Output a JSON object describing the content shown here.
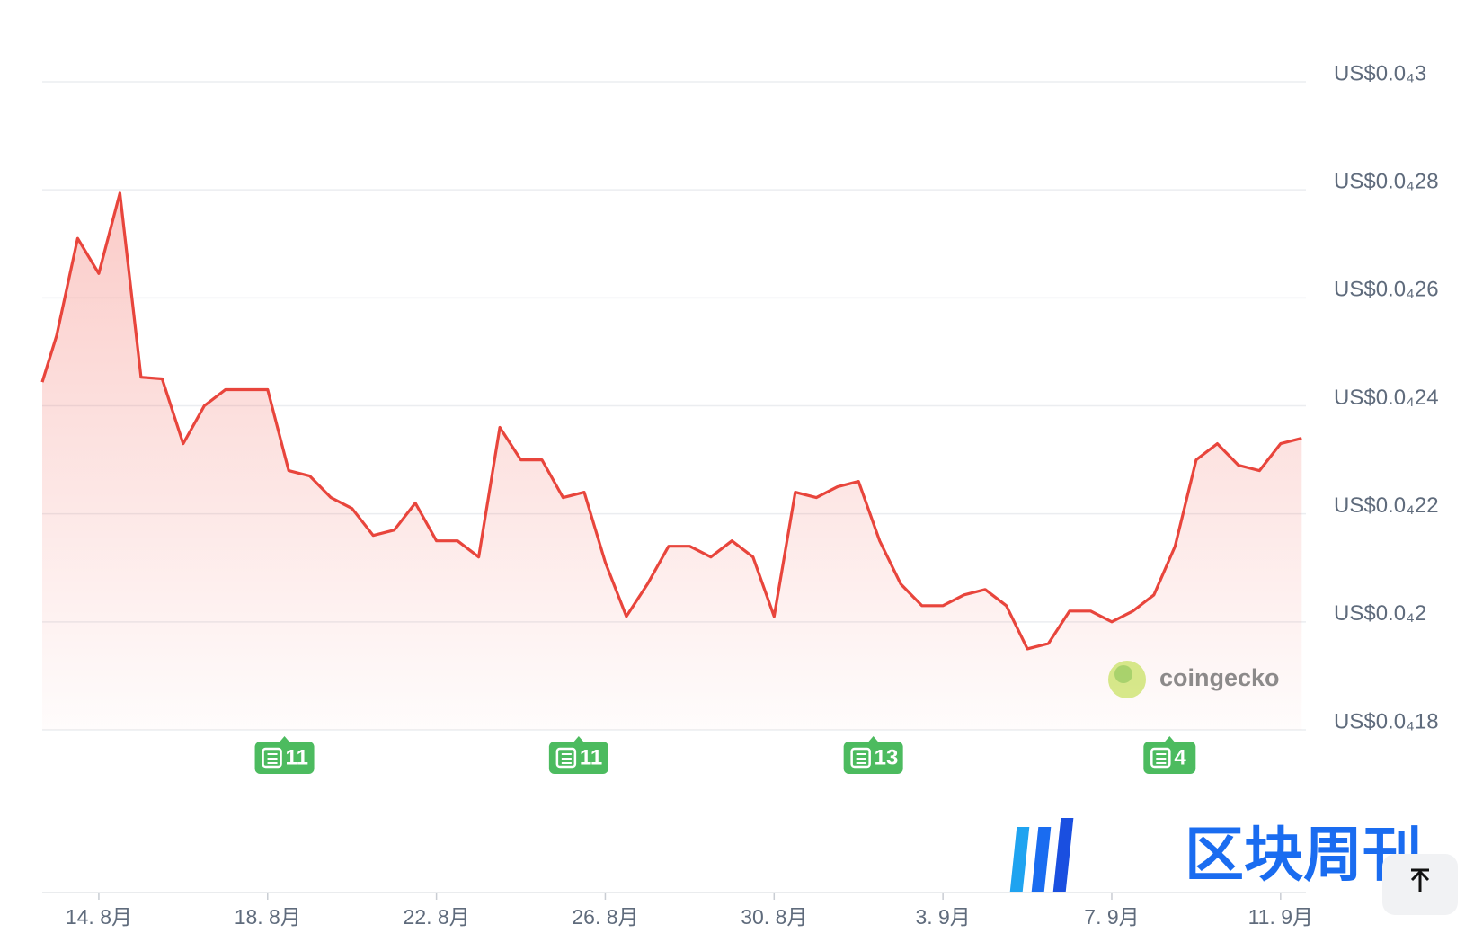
{
  "chart_data": {
    "type": "line",
    "series": [
      {
        "color": "#e8453c",
        "x": [
          -1.34,
          -1,
          -0.5,
          0,
          0.5,
          1,
          1.5,
          2,
          2.5,
          3,
          3.5,
          4,
          4.5,
          5,
          5.5,
          6,
          6.5,
          7,
          7.5,
          8,
          8.5,
          9,
          9.5,
          10,
          10.5,
          11,
          11.5,
          12,
          12.5,
          13,
          13.5,
          14,
          14.5,
          15,
          15.5,
          16,
          16.5,
          17,
          17.5,
          18,
          18.5,
          19,
          19.5,
          20,
          20.5,
          21,
          21.5,
          22,
          22.5,
          23,
          23.5,
          24,
          24.5,
          25,
          25.5,
          26,
          26.5,
          27,
          27.5,
          28,
          28.5
        ],
        "values": [
          2.444e-05,
          2.53e-05,
          2.71e-05,
          2.645e-05,
          2.794e-05,
          2.453e-05,
          2.45e-05,
          2.33e-05,
          2.4e-05,
          2.43e-05,
          2.43e-05,
          2.43e-05,
          2.28e-05,
          2.27e-05,
          2.23e-05,
          2.21e-05,
          2.16e-05,
          2.17e-05,
          2.22e-05,
          2.15e-05,
          2.15e-05,
          2.12e-05,
          2.36e-05,
          2.3e-05,
          2.3e-05,
          2.23e-05,
          2.24e-05,
          2.11e-05,
          2.01e-05,
          2.07e-05,
          2.14e-05,
          2.14e-05,
          2.12e-05,
          2.15e-05,
          2.12e-05,
          2.01e-05,
          2.24e-05,
          2.23e-05,
          2.25e-05,
          2.26e-05,
          2.15e-05,
          2.07e-05,
          2.03e-05,
          2.03e-05,
          2.05e-05,
          2.06e-05,
          2.03e-05,
          1.95e-05,
          1.96e-05,
          2.02e-05,
          2.02e-05,
          2e-05,
          2.02e-05,
          2.05e-05,
          2.14e-05,
          2.3e-05,
          2.33e-05,
          2.29e-05,
          2.28e-05,
          2.33e-05,
          2.34e-05
        ]
      }
    ],
    "xlim": [
      -1.34,
      28.6
    ],
    "xticks": [
      {
        "value": 0,
        "label": "14. 8月"
      },
      {
        "value": 4,
        "label": "18. 8月"
      },
      {
        "value": 8,
        "label": "22. 8月"
      },
      {
        "value": 12,
        "label": "26. 8月"
      },
      {
        "value": 16,
        "label": "30. 8月"
      },
      {
        "value": 20,
        "label": "3. 9月"
      },
      {
        "value": 24,
        "label": "7. 9月"
      },
      {
        "value": 28,
        "label": "11. 9月"
      }
    ],
    "ylim": [
      1.8e-05,
      3e-05
    ],
    "yticks": [
      {
        "value": 1.8e-05,
        "label": "US$0.0₄18"
      },
      {
        "value": 2e-05,
        "label": "US$0.0₄2"
      },
      {
        "value": 2.2e-05,
        "label": "US$0.0₄22"
      },
      {
        "value": 2.4e-05,
        "label": "US$0.0₄24"
      },
      {
        "value": 2.6e-05,
        "label": "US$0.0₄26"
      },
      {
        "value": 2.8e-05,
        "label": "US$0.0₄28"
      },
      {
        "value": 3e-05,
        "label": "US$0.0₄3"
      }
    ],
    "grid": true,
    "annotations": [
      {
        "x": 4.4,
        "label": "11"
      },
      {
        "x": 11.37,
        "label": "11"
      },
      {
        "x": 18.35,
        "label": "13"
      },
      {
        "x": 25.37,
        "label": "4"
      }
    ]
  },
  "watermarks": {
    "coingecko": "coingecko",
    "publisher": "区块周刊"
  }
}
